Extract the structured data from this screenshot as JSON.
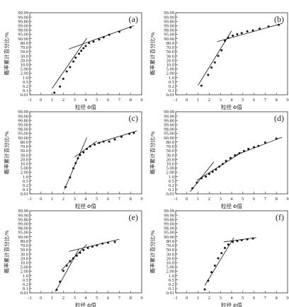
{
  "chart_data": [
    {
      "type": "scatter",
      "panel_label": "(a)",
      "xlabel": "粒径 Φ值",
      "ylabel": "概率累计百分比/%",
      "x_ticks": [
        "-1",
        "0",
        "1",
        "2",
        "3",
        "4",
        "5",
        "6",
        "7",
        "8",
        "9"
      ],
      "y_ticks": [
        "0.01",
        "0.1",
        "0.2",
        "0.5",
        "1.0",
        "2.00",
        "5.00",
        "10.0",
        "20.0",
        "30.0",
        "50.0",
        "70.0",
        "80.0",
        "90.00",
        "95.00",
        "98.00",
        "99.00",
        "99.80",
        "99.90",
        "99.99"
      ],
      "xlim": [
        -1,
        9
      ],
      "points": [
        [
          1.2,
          0.5
        ],
        [
          1.7,
          1.9
        ],
        [
          2.0,
          3.7
        ],
        [
          2.3,
          5.4
        ],
        [
          2.6,
          6.4
        ],
        [
          2.9,
          7.7
        ],
        [
          3.1,
          8.6
        ],
        [
          3.4,
          9.5
        ],
        [
          3.6,
          10.2
        ],
        [
          3.8,
          10.8
        ],
        [
          4.0,
          11.3
        ],
        [
          4.3,
          12.0
        ],
        [
          4.7,
          12.3
        ],
        [
          5.2,
          12.8
        ],
        [
          5.6,
          13.3
        ],
        [
          6.1,
          13.9
        ],
        [
          7.0,
          14.6
        ],
        [
          8.0,
          15.6
        ]
      ],
      "fit_lines": [
        [
          [
            1.0,
            1.5
          ],
          [
            4.1,
            13.1
          ]
        ],
        [
          [
            2.5,
            10.6
          ],
          [
            8.3,
            16.0
          ]
        ]
      ]
    },
    {
      "type": "scatter",
      "panel_label": "(b)",
      "xlabel": "粒径 Φ值",
      "ylabel": "概率累计百分比/%",
      "x_ticks": [
        "-1",
        "0",
        "1",
        "2",
        "3",
        "4",
        "5",
        "6",
        "7",
        "8",
        "9"
      ],
      "y_ticks": [
        "0.01",
        "0.1",
        "0.2",
        "0.5",
        "1.0",
        "2.00",
        "5.00",
        "10.0",
        "20.0",
        "30.0",
        "50.0",
        "70.0",
        "80.0",
        "90.00",
        "95.00",
        "98.00",
        "99.00",
        "99.80",
        "99.90",
        "99.99"
      ],
      "xlim": [
        -1,
        9
      ],
      "points": [
        [
          1.3,
          2.1
        ],
        [
          1.9,
          4.6
        ],
        [
          2.2,
          6.3
        ],
        [
          2.5,
          7.5
        ],
        [
          2.8,
          9.0
        ],
        [
          3.1,
          10.3
        ],
        [
          3.4,
          12.5
        ],
        [
          3.7,
          13.2
        ],
        [
          4.1,
          13.7
        ],
        [
          4.5,
          14.0
        ],
        [
          4.9,
          14.3
        ],
        [
          5.4,
          14.7
        ],
        [
          5.9,
          14.9
        ],
        [
          6.5,
          15.3
        ],
        [
          7.3,
          15.8
        ],
        [
          8.2,
          16.2
        ]
      ],
      "fit_lines": [
        [
          [
            1.0,
            2.2
          ],
          [
            4.0,
            14.8
          ]
        ],
        [
          [
            2.7,
            12.3
          ],
          [
            8.5,
            16.5
          ]
        ]
      ]
    },
    {
      "type": "scatter",
      "panel_label": "(c)",
      "xlabel": "粒径 Φ值",
      "ylabel": "概率累计百分比/%",
      "x_ticks": [
        "-1",
        "0",
        "1",
        "2",
        "3",
        "4",
        "5",
        "6",
        "7",
        "8",
        "9"
      ],
      "y_ticks": [
        "0.01",
        "0.1",
        "0.2",
        "0.5",
        "1.0",
        "2.00",
        "5.00",
        "10.0",
        "20.0",
        "30.0",
        "50.0",
        "70.0",
        "80.0",
        "90.00",
        "95.00",
        "98.00",
        "99.00",
        "99.80",
        "99.90",
        "99.99"
      ],
      "xlim": [
        -1,
        9
      ],
      "points": [
        [
          2.2,
          1.6
        ],
        [
          2.6,
          3.8
        ],
        [
          2.9,
          5.9
        ],
        [
          3.1,
          7.1
        ],
        [
          3.3,
          8.2
        ],
        [
          3.5,
          9.0
        ],
        [
          3.8,
          9.6
        ],
        [
          4.1,
          10.4
        ],
        [
          4.4,
          11.0
        ],
        [
          4.8,
          11.4
        ],
        [
          5.2,
          11.8
        ],
        [
          5.6,
          12.1
        ],
        [
          6.1,
          12.1
        ],
        [
          6.6,
          12.6
        ],
        [
          7.2,
          13.2
        ],
        [
          7.9,
          13.9
        ],
        [
          8.3,
          14.1
        ]
      ],
      "fit_lines": [
        [
          [
            2.1,
            1.0
          ],
          [
            4.1,
            13.0
          ]
        ],
        [
          [
            3.0,
            8.5
          ],
          [
            5.0,
            12.2
          ]
        ],
        [
          [
            5.0,
            11.7
          ],
          [
            8.6,
            14.6
          ]
        ]
      ]
    },
    {
      "type": "scatter",
      "panel_label": "(d)",
      "xlabel": "粒径 Φ值",
      "ylabel": "概率累计百分比/%",
      "x_ticks": [
        "-1",
        "0",
        "1",
        "2",
        "3",
        "4",
        "5",
        "6",
        "7",
        "8",
        "9"
      ],
      "y_ticks": [
        "0.01",
        "0.1",
        "0.2",
        "0.5",
        "1.0",
        "2.00",
        "5.00",
        "10.0",
        "20.0",
        "30.0",
        "50.0",
        "70.0",
        "80.0",
        "90.00",
        "95.00",
        "98.00",
        "99.00",
        "99.80",
        "99.90",
        "99.99"
      ],
      "xlim": [
        -1,
        9
      ],
      "points": [
        [
          0.5,
          1.3
        ],
        [
          0.9,
          2.6
        ],
        [
          1.3,
          3.6
        ],
        [
          1.7,
          4.0
        ],
        [
          2.0,
          4.6
        ],
        [
          2.3,
          5.1
        ],
        [
          2.6,
          5.6
        ],
        [
          2.9,
          6.3
        ],
        [
          3.2,
          6.9
        ],
        [
          3.5,
          7.6
        ],
        [
          3.9,
          8.3
        ],
        [
          4.3,
          8.9
        ],
        [
          4.7,
          9.4
        ],
        [
          5.1,
          9.9
        ],
        [
          5.5,
          10.4
        ],
        [
          6.0,
          10.8
        ],
        [
          6.4,
          11.1
        ],
        [
          7.0,
          11.9
        ],
        [
          8.0,
          12.8
        ]
      ],
      "fit_lines": [
        [
          [
            0.3,
            0.5
          ],
          [
            2.4,
            7.4
          ]
        ],
        [
          [
            0.9,
            3.1
          ],
          [
            4.9,
            9.6
          ]
        ],
        [
          [
            4.3,
            8.9
          ],
          [
            8.5,
            13.1
          ]
        ]
      ]
    },
    {
      "type": "scatter",
      "panel_label": "(e)",
      "xlabel": "粒径 Φ值",
      "ylabel": "概率累计百分比/%",
      "x_ticks": [
        "-1",
        "0",
        "1",
        "2",
        "3",
        "4",
        "5",
        "6",
        "7",
        "8",
        "9"
      ],
      "y_ticks": [
        "0.01",
        "0.1",
        "0.2",
        "0.5",
        "1.0",
        "2.00",
        "5.00",
        "10.0",
        "20.0",
        "30.0",
        "50.0",
        "70.0",
        "80.0",
        "90.00",
        "95.00",
        "98.00",
        "99.00",
        "99.80",
        "99.90",
        "99.99"
      ],
      "xlim": [
        -1,
        9
      ],
      "points": [
        [
          1.4,
          0.7
        ],
        [
          1.7,
          2.6
        ],
        [
          2.0,
          5.1
        ],
        [
          2.3,
          6.3
        ],
        [
          2.6,
          7.3
        ],
        [
          2.9,
          8.0
        ],
        [
          3.2,
          8.6
        ],
        [
          3.5,
          9.3
        ],
        [
          3.8,
          9.9
        ],
        [
          4.2,
          10.4
        ],
        [
          4.6,
          10.7
        ],
        [
          5.0,
          11.0
        ],
        [
          5.5,
          11.4
        ],
        [
          6.0,
          11.6
        ],
        [
          6.6,
          11.8
        ]
      ],
      "fit_lines": [
        [
          [
            1.3,
            0.3
          ],
          [
            3.4,
            10.2
          ]
        ],
        [
          [
            1.8,
            5.2
          ],
          [
            4.1,
            11.2
          ]
        ],
        [
          [
            2.5,
            9.6
          ],
          [
            7.0,
            12.4
          ]
        ]
      ]
    },
    {
      "type": "scatter",
      "panel_label": "(f)",
      "xlabel": "粒径 Φ值",
      "ylabel": "概率累计百分比/%",
      "x_ticks": [
        "-1",
        "0",
        "1",
        "2",
        "3",
        "4",
        "5",
        "6",
        "7",
        "8",
        "9"
      ],
      "y_ticks": [
        "0.01",
        "0.1",
        "0.2",
        "0.5",
        "1.0",
        "2.00",
        "5.00",
        "10.0",
        "20.0",
        "30.0",
        "50.0",
        "70.0",
        "80.0",
        "90.00",
        "95.00",
        "98.00",
        "99.00",
        "99.80",
        "99.90",
        "99.99"
      ],
      "xlim": [
        -1,
        9
      ],
      "points": [
        [
          1.6,
          0.8
        ],
        [
          1.9,
          2.8
        ],
        [
          2.2,
          4.8
        ],
        [
          2.5,
          6.3
        ],
        [
          2.8,
          8.0
        ],
        [
          3.1,
          9.2
        ],
        [
          3.4,
          10.4
        ],
        [
          3.7,
          11.2
        ],
        [
          4.1,
          11.8
        ],
        [
          4.5,
          12.0
        ],
        [
          4.9,
          12.2
        ],
        [
          5.4,
          12.4
        ],
        [
          5.9,
          12.6
        ]
      ],
      "fit_lines": [
        [
          [
            1.6,
            1.7
          ],
          [
            4.2,
            12.8
          ]
        ],
        [
          [
            3.3,
            11.8
          ],
          [
            6.2,
            12.8
          ]
        ]
      ]
    }
  ]
}
